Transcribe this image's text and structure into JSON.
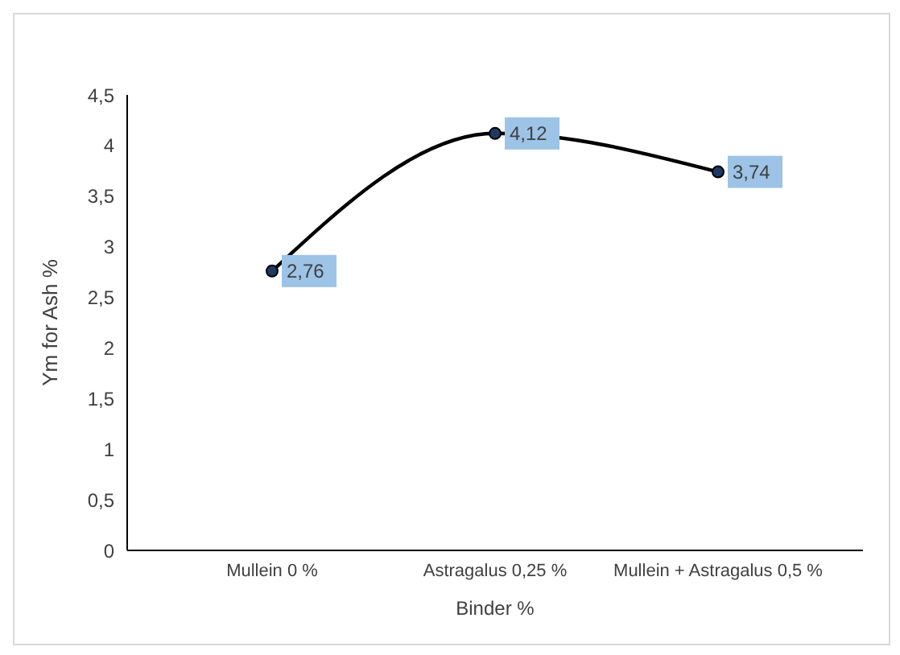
{
  "chart_data": {
    "type": "line",
    "xlabel": "Binder %",
    "ylabel": "Ym for Ash %",
    "categories": [
      "Mullein 0 %",
      "Astragalus 0,25 %",
      "Mullein + Astragalus 0,5 %"
    ],
    "series": [
      {
        "color": "#000000",
        "values": [
          2.76,
          4.12,
          3.74
        ],
        "value_labels": [
          "2,76",
          "4,12",
          "3,74"
        ]
      }
    ],
    "ylim": [
      0,
      4.5
    ],
    "yticks": [
      {
        "value": 0,
        "label": "0"
      },
      {
        "value": 0.5,
        "label": "0,5"
      },
      {
        "value": 1,
        "label": "1"
      },
      {
        "value": 1.5,
        "label": "1,5"
      },
      {
        "value": 2,
        "label": "2"
      },
      {
        "value": 2.5,
        "label": "2,5"
      },
      {
        "value": 3,
        "label": "3"
      },
      {
        "value": 3.5,
        "label": "3,5"
      },
      {
        "value": 4,
        "label": "4"
      },
      {
        "value": 4.5,
        "label": "4,5"
      }
    ],
    "grid": false,
    "legend": false,
    "marker": "circle",
    "line_style": "solid"
  }
}
